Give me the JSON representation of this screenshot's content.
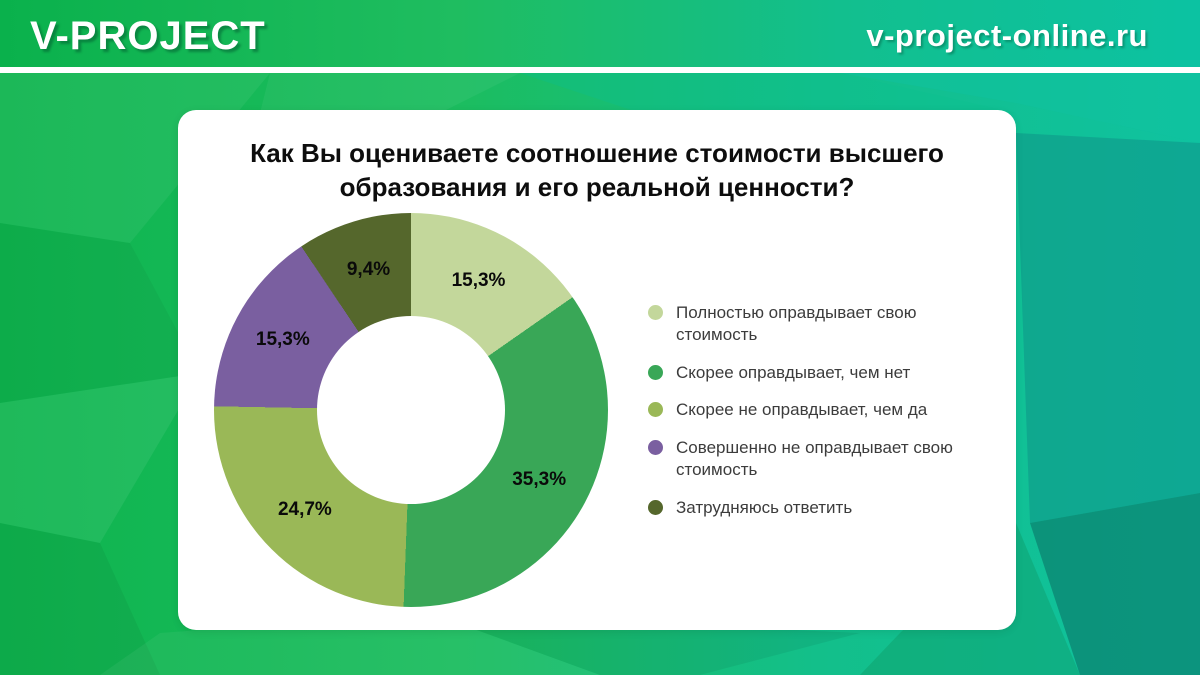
{
  "header": {
    "logo": "V-PROJECT",
    "site": "v-project-online.ru"
  },
  "card": {
    "title_line1": "Как Вы оцениваете соотношение стоимости высшего",
    "title_line2": "образования и его реальной ценности?"
  },
  "chart_data": {
    "type": "pie",
    "subtype": "donut",
    "title": "Как Вы оцениваете соотношение стоимости высшего образования и его реальной ценности?",
    "start_angle_deg": 0,
    "direction": "clockwise",
    "hole_ratio": 0.48,
    "categories": [
      "Полностью оправдывает свою стоимость",
      "Скорее оправдывает, чем нет",
      "Скорее не оправдывает, чем да",
      "Совершенно не оправдывает свою стоимость",
      "Затрудняюсь ответить"
    ],
    "values": [
      15.3,
      35.3,
      24.7,
      15.3,
      9.4
    ],
    "labels": [
      "15,3%",
      "35,3%",
      "24,7%",
      "15,3%",
      "9,4%"
    ],
    "colors": [
      "#c3d79b",
      "#39a757",
      "#9ab857",
      "#7a5fa0",
      "#55672c"
    ],
    "legend_position": "right"
  },
  "legend": {
    "items": [
      {
        "label": "Полностью оправдывает свою стоимость",
        "color": "#c3d79b"
      },
      {
        "label": "Скорее оправдывает, чем нет",
        "color": "#39a757"
      },
      {
        "label": "Скорее не оправдывает, чем да",
        "color": "#9ab857"
      },
      {
        "label": "Совершенно не оправдывает свою стоимость",
        "color": "#7a5fa0"
      },
      {
        "label": "Затрудняюсь ответить",
        "color": "#55672c"
      }
    ]
  },
  "colors": {
    "header_green": "#0ab14c",
    "header_teal": "#0cc2a2",
    "card_bg": "#ffffff",
    "title_text": "#0d0d0d",
    "legend_text": "#3c3c3c",
    "slice_label_text": "#0a0a0a"
  }
}
